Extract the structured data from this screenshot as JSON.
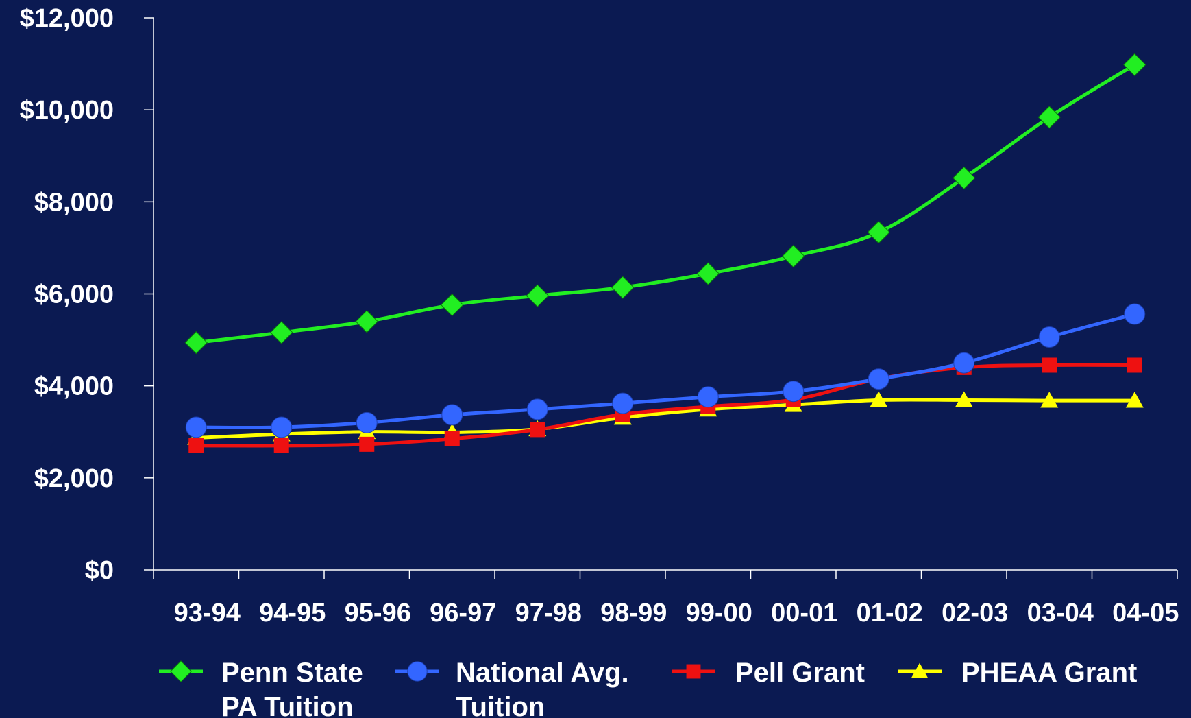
{
  "chart_data": {
    "type": "line",
    "categories": [
      "93-94",
      "94-95",
      "95-96",
      "96-97",
      "97-98",
      "98-99",
      "99-00",
      "00-01",
      "01-02",
      "02-03",
      "03-04",
      "04-05"
    ],
    "y_tick_labels": [
      "$0",
      "$2,000",
      "$4,000",
      "$6,000",
      "$8,000",
      "$10,000",
      "$12,000"
    ],
    "y_tick_values": [
      0,
      2000,
      4000,
      6000,
      8000,
      10000,
      12000
    ],
    "ylim": [
      0,
      12000
    ],
    "grid": false,
    "legend_position": "bottom",
    "series": [
      {
        "name_lines": [
          "Penn State",
          "PA Tuition"
        ],
        "color": "#22ee22",
        "marker": "diamond",
        "values": [
          4940,
          5160,
          5400,
          5760,
          5960,
          6140,
          6440,
          6820,
          7340,
          8520,
          9840,
          10980
        ]
      },
      {
        "name_lines": [
          "National Avg.",
          "Tuition"
        ],
        "color": "#3366ff",
        "marker": "circle",
        "values": [
          3100,
          3100,
          3200,
          3370,
          3490,
          3620,
          3760,
          3880,
          4150,
          4500,
          5060,
          5560
        ]
      },
      {
        "name_lines": [
          "Pell Grant"
        ],
        "color": "#ee1111",
        "marker": "square",
        "values": [
          2700,
          2700,
          2730,
          2850,
          3050,
          3380,
          3550,
          3700,
          4150,
          4400,
          4450,
          4450
        ]
      },
      {
        "name_lines": [
          "PHEAA Grant"
        ],
        "color": "#ffff00",
        "marker": "triangle",
        "values": [
          2870,
          2950,
          3000,
          2990,
          3060,
          3310,
          3490,
          3590,
          3690,
          3690,
          3680,
          3680
        ]
      }
    ]
  }
}
